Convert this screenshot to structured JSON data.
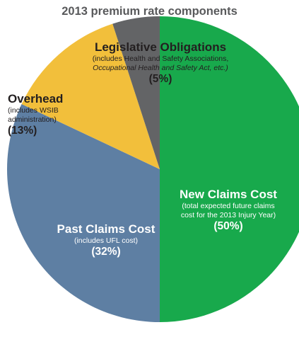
{
  "chart_data": {
    "type": "pie",
    "title": "2013 premium rate components",
    "slices": [
      {
        "name": "New Claims Cost",
        "note_lines": [
          "(total expected future claims",
          "cost for the 2013 Injury Year)"
        ],
        "value": 50,
        "value_label": "(50%)",
        "color": "#18a94c"
      },
      {
        "name": "Past Claims Cost",
        "note_lines": [
          "(includes UFL cost)"
        ],
        "value": 32,
        "value_label": "(32%)",
        "color": "#5e7fa3"
      },
      {
        "name": "Overhead",
        "note_lines": [
          "(includes WSIB",
          "administration)"
        ],
        "value": 13,
        "value_label": "(13%)",
        "color": "#f2bf3b"
      },
      {
        "name": "Legislative Obligations",
        "note_lines": [
          "(includes Health and Safety Associations,",
          "Occupational Health and Safety Act, etc.)"
        ],
        "value": 5,
        "value_label": "(5%)",
        "color": "#636466"
      }
    ]
  }
}
